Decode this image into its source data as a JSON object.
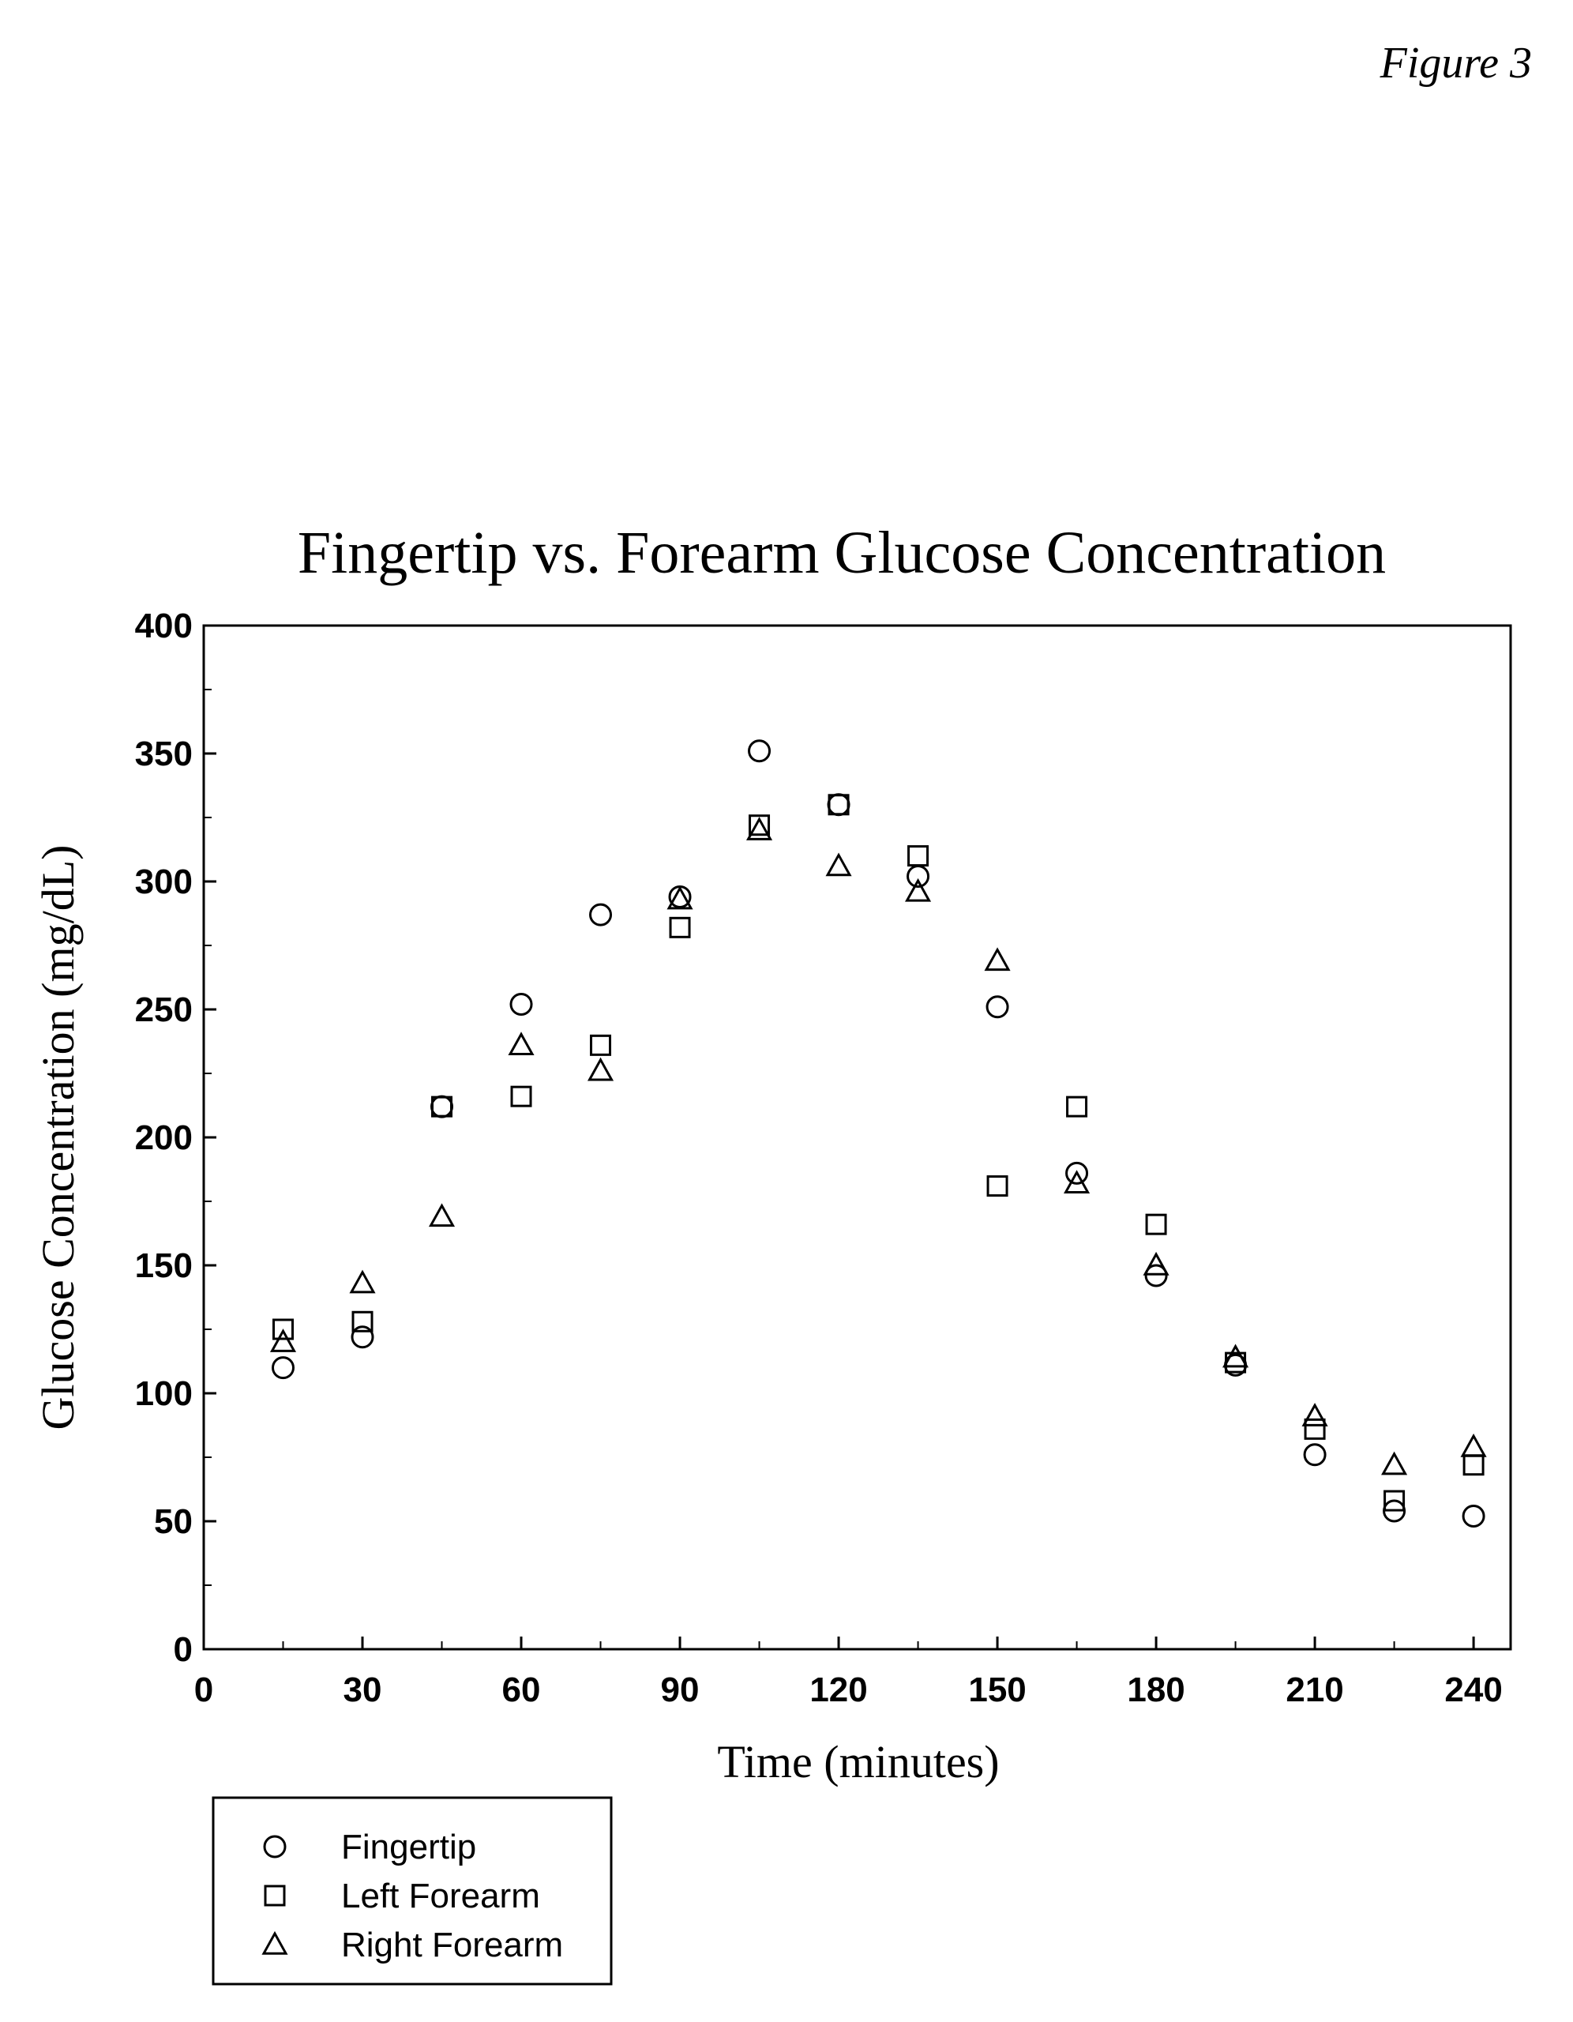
{
  "figure_label": "Figure 3",
  "chart_data": {
    "type": "scatter",
    "title": "Fingertip vs. Forearm Glucose Concentration",
    "xlabel": "Time (minutes)",
    "ylabel": "Glucose Concentration (mg/dL)",
    "xlim": [
      0,
      247
    ],
    "ylim": [
      0,
      400
    ],
    "xticks": [
      0,
      30,
      60,
      90,
      120,
      150,
      180,
      210,
      240
    ],
    "yticks": [
      0,
      50,
      100,
      150,
      200,
      250,
      300,
      350,
      400
    ],
    "grid": false,
    "legend_position": "bottom-left",
    "series": [
      {
        "name": "Fingertip",
        "marker": "circle",
        "x": [
          15,
          30,
          45,
          60,
          75,
          90,
          105,
          120,
          135,
          150,
          165,
          180,
          195,
          210,
          225,
          240
        ],
        "y": [
          110,
          122,
          212,
          252,
          287,
          294,
          351,
          330,
          302,
          251,
          186,
          146,
          111,
          76,
          54,
          52
        ]
      },
      {
        "name": "Left Forearm",
        "marker": "square",
        "x": [
          15,
          30,
          45,
          60,
          75,
          90,
          105,
          120,
          135,
          150,
          165,
          180,
          195,
          210,
          225,
          240
        ],
        "y": [
          125,
          128,
          212,
          216,
          236,
          282,
          322,
          330,
          310,
          181,
          212,
          166,
          112,
          86,
          58,
          72
        ]
      },
      {
        "name": "Right Forearm",
        "marker": "triangle",
        "x": [
          15,
          30,
          45,
          60,
          75,
          90,
          105,
          120,
          135,
          150,
          165,
          180,
          195,
          210,
          225,
          240
        ],
        "y": [
          120,
          143,
          169,
          236,
          226,
          293,
          320,
          306,
          296,
          269,
          182,
          150,
          114,
          91,
          72,
          79
        ]
      }
    ]
  }
}
